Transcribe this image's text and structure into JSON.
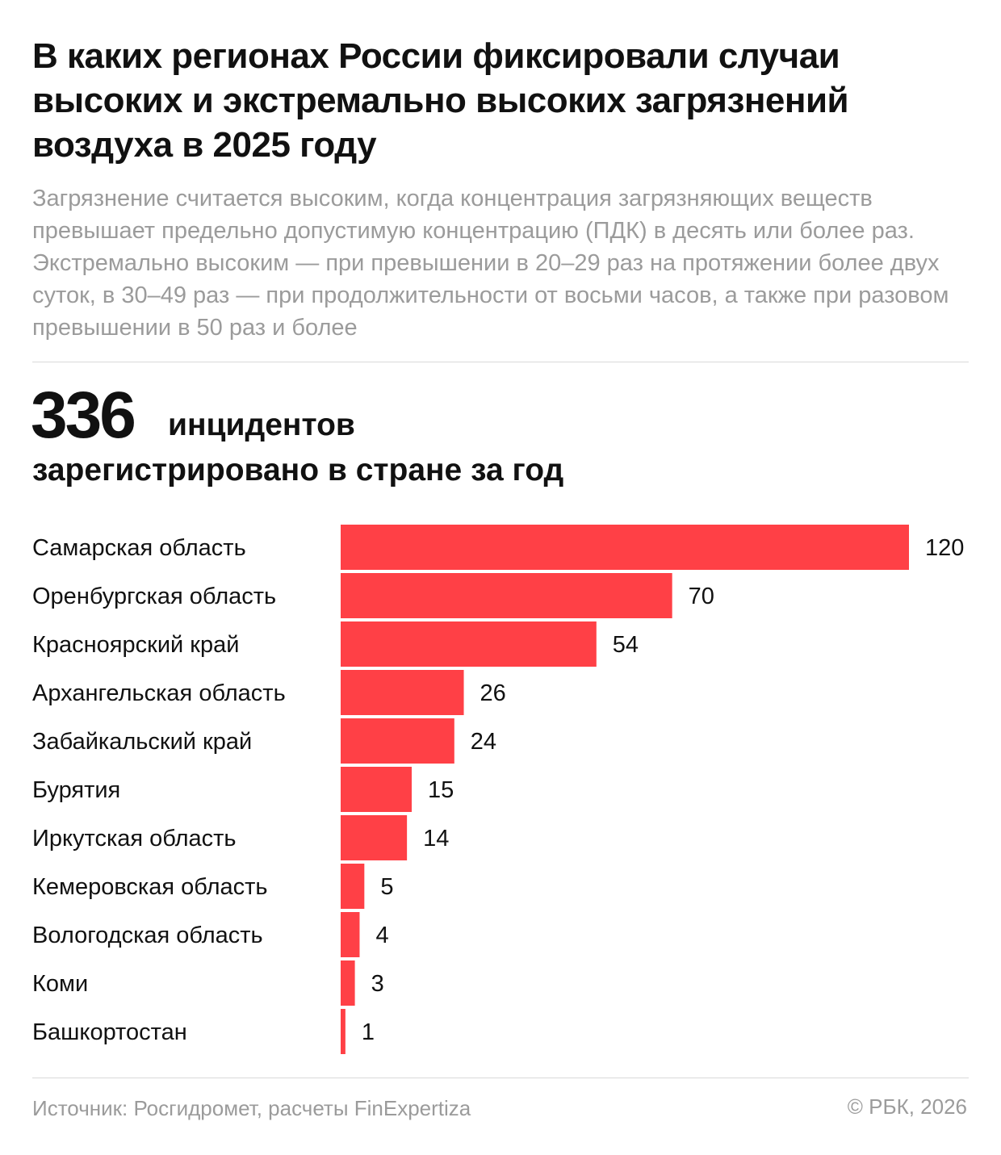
{
  "header": {
    "title": "В каких регионах России фиксировали случаи высоких и экстремально высоких загрязнений воздуха в 2025 году",
    "subtitle": "Загрязнение считается высоким, когда концентрация загрязняющих веществ превышает предельно допустимую концентрацию (ПДК) в десять или более раз. Экстремально высоким — при превышении в 20–29 раз на протяжении более двух суток, в 30–49 раз — при продолжительности от восьми часов, а также при разовом превышении в 50 раз и более"
  },
  "headline": {
    "number": "336",
    "line1": "инцидентов",
    "line2": "зарегистрировано в стране за год"
  },
  "colors": {
    "bar": "#ff4046",
    "text": "#111111",
    "muted": "#9b9b9b"
  },
  "chart_data": {
    "type": "bar",
    "orientation": "horizontal",
    "categories": [
      "Самарская область",
      "Оренбургская область",
      "Красноярский край",
      "Архангельская область",
      "Забайкальский край",
      "Бурятия",
      "Иркутская область",
      "Кемеровская область",
      "Вологодская область",
      "Коми",
      "Башкортостан"
    ],
    "values": [
      120,
      70,
      54,
      26,
      24,
      15,
      14,
      5,
      4,
      3,
      1
    ],
    "value_labels": [
      "120",
      "70",
      "54",
      "26",
      "24",
      "15",
      "14",
      "5",
      "4",
      "3",
      "1"
    ],
    "title": "",
    "xlabel": "",
    "ylabel": "",
    "xlim": [
      0,
      120
    ],
    "grid": false,
    "legend": "none"
  },
  "footer": {
    "source": "Источник: Росгидромет, расчеты FinExpertiza",
    "credit": "© РБК, 2026"
  }
}
